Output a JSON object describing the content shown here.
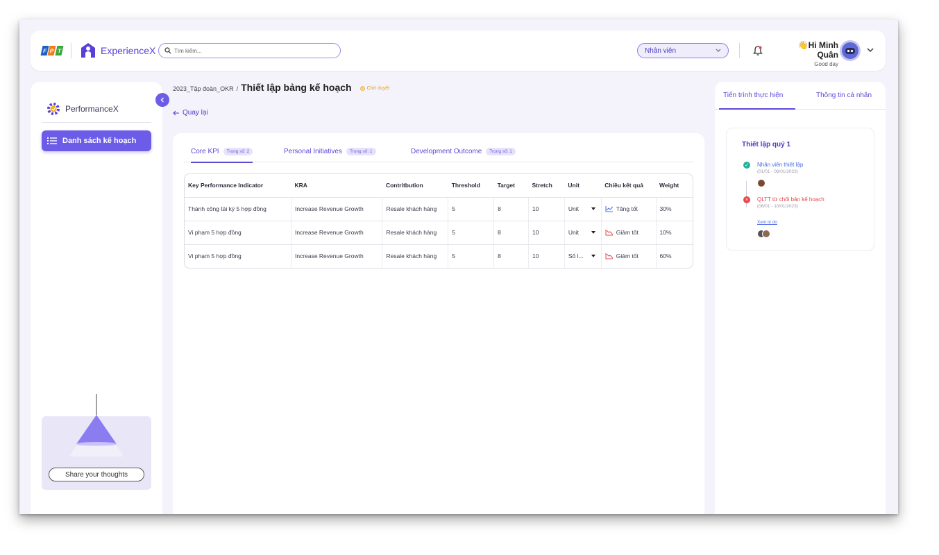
{
  "header": {
    "logo_text": [
      "F",
      "P",
      "T"
    ],
    "brand": "ExperienceX",
    "search_placeholder": "Tìm kiếm...",
    "role_select": "Nhân viên",
    "greeting_name": "Hi Minh Quân",
    "greeting_sub": "Good day"
  },
  "sidebar": {
    "app_name": "PerformanceX",
    "nav_items": [
      {
        "label": "Danh sách kế hoạch",
        "active": true
      }
    ],
    "share_button": "Share your thoughts"
  },
  "breadcrumb": {
    "parent": "2023_Tập đoàn_OKR",
    "separator": "/",
    "title": "Thiết lập bảng kế hoạch",
    "status": "Chờ duyệt"
  },
  "back_label": "Quay lại",
  "tabs": [
    {
      "label": "Core KPI",
      "badge": "Trọng số: 2",
      "active": true
    },
    {
      "label": "Personal Initiatives",
      "badge": "Trọng số: 1",
      "active": false
    },
    {
      "label": "Development Outcome",
      "badge": "Trọng số: 1",
      "active": false
    }
  ],
  "table": {
    "headers": [
      "Key Performance Indicator",
      "KRA",
      "Contritbution",
      "Threshold",
      "Target",
      "Stretch",
      "Unit",
      "Chiều kết quả",
      "Weight"
    ],
    "rows": [
      {
        "kpi": "Thành công tái ký 5 hợp đồng",
        "kra": "Increase Revenue Growth",
        "contribution": "Resale khách hàng",
        "threshold": "5",
        "target": "8",
        "stretch": "10",
        "unit": "Unit",
        "direction": "Tăng tốt",
        "direction_type": "up",
        "weight": "30%"
      },
      {
        "kpi": "Vi phạm 5 hợp đồng",
        "kra": "Increase Revenue Growth",
        "contribution": "Resale khách hàng",
        "threshold": "5",
        "target": "8",
        "stretch": "10",
        "unit": "Unit",
        "direction": "Giảm tốt",
        "direction_type": "down",
        "weight": "10%"
      },
      {
        "kpi": "Vi phạm 5 hợp đồng",
        "kra": "Increase Revenue Growth",
        "contribution": "Resale khách hàng",
        "threshold": "5",
        "target": "8",
        "stretch": "10",
        "unit": "Số l...",
        "direction": "Giảm tốt",
        "direction_type": "down",
        "weight": "60%"
      }
    ]
  },
  "right_panel": {
    "tabs": [
      {
        "label": "Tiến trình thực hiện",
        "active": true
      },
      {
        "label": "Thông tin cá nhân",
        "active": false
      }
    ],
    "timeline_title": "Thiết lập quý 1",
    "timeline": [
      {
        "label": "Nhân viên thiết lập",
        "date": "(01/01 - 06/01/2023)",
        "state": "done",
        "color": "#1fb59a"
      },
      {
        "label": "QLTT từ chối bản kế hoạch",
        "date": "(06/01 - 10/01/2023)",
        "state": "rejected",
        "color": "#e5484d",
        "link": "Xem lý do"
      }
    ]
  },
  "colors": {
    "accent": "#6c5ce7",
    "primary_text": "#5a48d6",
    "pending": "#e0a11b",
    "up": "#4b6ae0",
    "down": "#e5484d"
  }
}
